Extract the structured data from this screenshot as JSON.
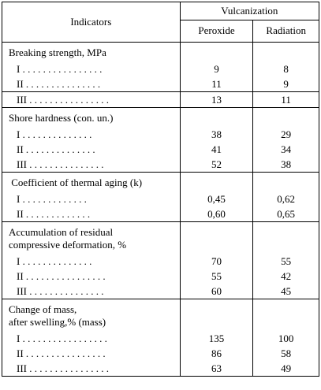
{
  "header": {
    "indicators": "Indicators",
    "vulcanization": "Vulcanization",
    "peroxide": "Peroxide",
    "radiation": "Radiation"
  },
  "sections": [
    {
      "title_lines": [
        "Breaking strength, MPa"
      ],
      "rows": [
        {
          "label": "I . . . . . . . . . . . . . . . .",
          "peroxide": "9",
          "radiation": "8"
        },
        {
          "label": "II . . . . . . . . . . . . . . .",
          "peroxide": "11",
          "radiation": "9"
        }
      ]
    },
    {
      "title_lines": [],
      "rows": [
        {
          "label": "III . . . . . . . . . . . . . . . .",
          "peroxide": "13",
          "radiation": "11"
        }
      ]
    },
    {
      "title_lines": [
        "Shore hardness (con. un.)"
      ],
      "rows": [
        {
          "label": "I . . . . . . . . . . . . . .",
          "peroxide": "38",
          "radiation": "29"
        },
        {
          "label": "II . . . . . . . . . . . . . .",
          "peroxide": "41",
          "radiation": "34"
        },
        {
          "label": "III . . . . . . . . . . . . . . .",
          "peroxide": "52",
          "radiation": "38"
        }
      ]
    },
    {
      "title_lines": [
        " Coefficient of thermal aging (k)"
      ],
      "rows": [
        {
          "label": "I . . . . . . . . . . . . .",
          "peroxide": "0,45",
          "radiation": "0,62"
        },
        {
          "label": "II . . . . . . . . . . . . .",
          "peroxide": "0,60",
          "radiation": "0,65"
        }
      ]
    },
    {
      "title_lines": [
        "Accumulation of residual",
        "compressive deformation, %"
      ],
      "rows": [
        {
          "label": "I . . . . . . . . . . . . . .",
          "peroxide": "70",
          "radiation": "55"
        },
        {
          "label": "II . . . . . . . . . . . . . . . .",
          "peroxide": "55",
          "radiation": "42"
        },
        {
          "label": "III . . . . . . . . . . . . . . .",
          "peroxide": "60",
          "radiation": "45"
        }
      ]
    },
    {
      "title_lines": [
        "Change of mass,",
        "after swelling,% (mass)"
      ],
      "rows": [
        {
          "label": "I . . . . . . . . . . . . . . . . .",
          "peroxide": "135",
          "radiation": "100"
        },
        {
          "label": "II . . . . . . . . . . . . . . . .",
          "peroxide": "86",
          "radiation": "58"
        },
        {
          "label": "III . . . . . . . . . . . . . . . .",
          "peroxide": "63",
          "radiation": "49"
        }
      ]
    }
  ]
}
